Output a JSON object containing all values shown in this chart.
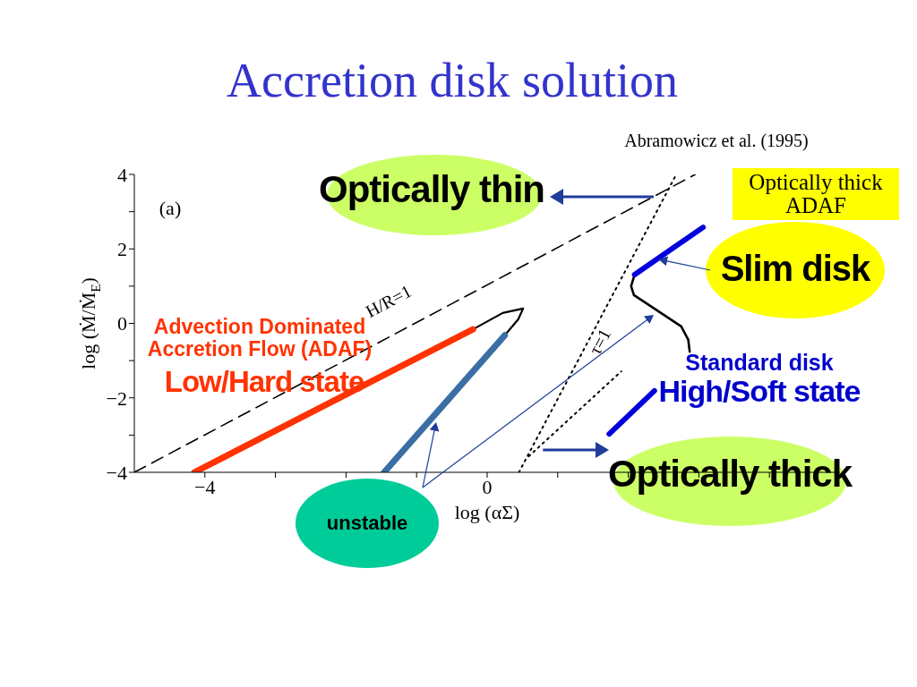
{
  "chart_data": {
    "type": "line",
    "title": "Accretion disk solution",
    "xlabel": "log (αΣ)",
    "ylabel": "log (Ṁ/Ṁ$_{E}$)",
    "xlim": [
      -5,
      5
    ],
    "ylim": [
      -4,
      4
    ],
    "xticks": [
      {
        "value": -4,
        "label": "−4"
      },
      {
        "value": -3,
        "label": null
      },
      {
        "value": -2,
        "label": null
      },
      {
        "value": -1,
        "label": null
      },
      0,
      {
        "value": 1,
        "label": null
      },
      {
        "value": 2,
        "label": null
      },
      {
        "value": 3,
        "label": null
      },
      {
        "value": 4,
        "label": null
      }
    ],
    "yticks": [
      {
        "value": -4,
        "label": "−4"
      },
      {
        "value": -3,
        "label": null
      },
      {
        "value": -2,
        "label": "−2"
      },
      {
        "value": -1,
        "label": null
      },
      0,
      {
        "value": 1,
        "label": null
      },
      2,
      {
        "value": 3,
        "label": null
      },
      4
    ],
    "series": [
      {
        "x": [
          -5,
          2.95
        ],
        "values": [
          -4,
          4
        ],
        "color": "#000000",
        "line_style": "dashed"
      },
      {
        "x": [
          0.45,
          2.68
        ],
        "values": [
          -4,
          4
        ],
        "color": "#000000",
        "line_style": "dotted"
      },
      {
        "x": [
          0.59,
          1.9
        ],
        "values": [
          -3.57,
          -1.29
        ],
        "color": "#000000",
        "line_style": "dotted"
      },
      {
        "x": [
          -0.2,
          0.22,
          0.51,
          0.44,
          0.25
        ],
        "values": [
          -0.16,
          0.28,
          0.4,
          0.11,
          -0.32
        ],
        "color": "#000000",
        "line_style": "solid"
      },
      {
        "x": [
          2.09,
          2.04,
          2.08,
          2.75,
          2.85,
          2.87
        ],
        "values": [
          1.31,
          1.0,
          0.76,
          -0.08,
          -0.44,
          -0.76
        ],
        "color": "#000000",
        "line_style": "solid"
      },
      {
        "x": [
          -4.15,
          -0.2
        ],
        "values": [
          -4,
          -0.16
        ],
        "color": "#ff3300",
        "line_style": "solid"
      },
      {
        "x": [
          0.25,
          -1.46
        ],
        "values": [
          -0.32,
          -4
        ],
        "color": "#3a6ea5",
        "line_style": "solid"
      },
      {
        "x": [
          2.09,
          3.06
        ],
        "values": [
          1.31,
          2.58
        ],
        "color": "#0000dd",
        "line_style": "solid"
      },
      {
        "x": [
          1.73,
          2.37
        ],
        "values": [
          -2.97,
          -1.81
        ],
        "color": "#0000dd",
        "line_style": "solid"
      }
    ],
    "annotations": [
      "(a)",
      "H/R=1",
      "τ=1",
      {
        "text": "Optically thin",
        "x": 2.36,
        "y": 3.4
      },
      "Optically thick ADAF",
      {
        "text": "Slim disk",
        "x": 2.43,
        "y": 1.72
      },
      "Standard disk",
      "High/Soft state",
      {
        "text": "Optically thick",
        "x": 0.79,
        "y": -3.4
      },
      "unstable",
      "Advection Dominated Accretion Flow (ADAF)",
      "Low/Hard state",
      "Abramowicz et al. (1995)"
    ]
  }
}
